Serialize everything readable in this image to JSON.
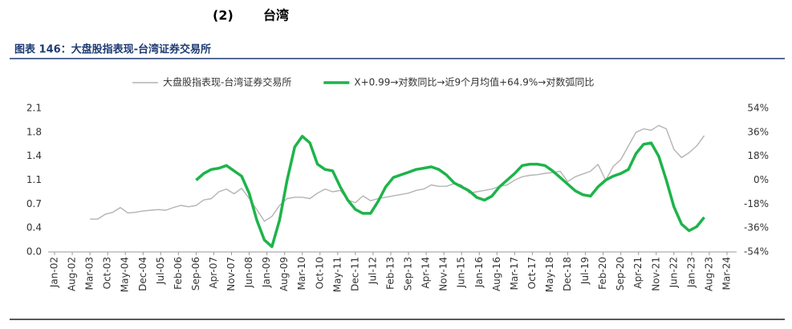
{
  "header": {
    "number": "(2)",
    "title": "台湾"
  },
  "caption": "图表 146：大盘股指表现-台湾证券交易所",
  "chart_data": {
    "type": "line",
    "x": [
      "Mar-03",
      "Jun-03",
      "Sep-03",
      "Dec-03",
      "Mar-04",
      "Jun-04",
      "Sep-04",
      "Dec-04",
      "Mar-05",
      "Jun-05",
      "Sep-05",
      "Dec-05",
      "Mar-06",
      "Jun-06",
      "Sep-06",
      "Dec-06",
      "Mar-07",
      "Jun-07",
      "Sep-07",
      "Dec-07",
      "Mar-08",
      "Jun-08",
      "Sep-08",
      "Dec-08",
      "Mar-09",
      "Jun-09",
      "Sep-09",
      "Dec-09",
      "Mar-10",
      "Jun-10",
      "Sep-10",
      "Dec-10",
      "Mar-11",
      "Jun-11",
      "Sep-11",
      "Dec-11",
      "Mar-12",
      "Jun-12",
      "Sep-12",
      "Dec-12",
      "Mar-13",
      "Jun-13",
      "Sep-13",
      "Dec-13",
      "Mar-14",
      "Jun-14",
      "Sep-14",
      "Dec-14",
      "Mar-15",
      "Jun-15",
      "Sep-15",
      "Dec-15",
      "Mar-16",
      "Jun-16",
      "Sep-16",
      "Dec-16",
      "Mar-17",
      "Jun-17",
      "Sep-17",
      "Dec-17",
      "Mar-18",
      "Jun-18",
      "Sep-18",
      "Dec-18",
      "Mar-19",
      "Jun-19",
      "Sep-19",
      "Dec-19",
      "Mar-20",
      "Jun-20",
      "Sep-20",
      "Dec-20",
      "Mar-21",
      "Jun-21",
      "Sep-21",
      "Dec-21",
      "Mar-22",
      "Jun-22",
      "Sep-22",
      "Dec-22",
      "Mar-23",
      "Jun-23"
    ],
    "series": [
      {
        "name": "大盘股指表现-台湾证券交易所",
        "color": "#b4b4b4",
        "axis": "y",
        "values": [
          0.48,
          0.48,
          0.55,
          0.58,
          0.65,
          0.57,
          0.58,
          0.6,
          0.61,
          0.62,
          0.61,
          0.65,
          0.68,
          0.66,
          0.68,
          0.76,
          0.78,
          0.88,
          0.92,
          0.85,
          0.93,
          0.78,
          0.62,
          0.45,
          0.52,
          0.68,
          0.78,
          0.8,
          0.8,
          0.78,
          0.86,
          0.92,
          0.88,
          0.9,
          0.76,
          0.72,
          0.82,
          0.75,
          0.78,
          0.8,
          0.82,
          0.84,
          0.86,
          0.9,
          0.92,
          0.98,
          0.96,
          0.96,
          1.0,
          0.98,
          0.86,
          0.88,
          0.9,
          0.92,
          0.96,
          0.98,
          1.05,
          1.1,
          1.12,
          1.13,
          1.15,
          1.16,
          1.18,
          1.03,
          1.1,
          1.14,
          1.18,
          1.28,
          1.05,
          1.25,
          1.35,
          1.55,
          1.75,
          1.8,
          1.78,
          1.85,
          1.8,
          1.5,
          1.38,
          1.45,
          1.55,
          1.7
        ]
      },
      {
        "name": "X+0.99→对数同比→近9个月均值+64.9%→对数弧同比",
        "color": "#1db44a",
        "axis": "y2",
        "values": [
          null,
          null,
          null,
          null,
          null,
          null,
          null,
          null,
          null,
          null,
          null,
          null,
          null,
          null,
          0,
          5,
          8,
          9,
          11,
          7,
          3,
          -10,
          -30,
          -45,
          -50,
          -30,
          0,
          25,
          33,
          28,
          12,
          8,
          7,
          -5,
          -15,
          -22,
          -25,
          -25,
          -16,
          -5,
          2,
          4,
          6,
          8,
          9,
          10,
          8,
          4,
          -2,
          -5,
          -8,
          -13,
          -15,
          -12,
          -5,
          0,
          5,
          11,
          12,
          12,
          11,
          7,
          2,
          -3,
          -8,
          -11,
          -12,
          -5,
          0,
          3,
          5,
          8,
          20,
          27,
          28,
          18,
          0,
          -20,
          -33,
          -38,
          -35,
          -28
        ]
      }
    ],
    "ylim": [
      0,
      2.1
    ],
    "yticks": [
      {
        "value": 0,
        "label": "0.0"
      },
      {
        "value": 0.35,
        "label": "0.4"
      },
      {
        "value": 0.7,
        "label": "0.7"
      },
      {
        "value": 1.05,
        "label": "1.1"
      },
      {
        "value": 1.4,
        "label": "1.4"
      },
      {
        "value": 1.75,
        "label": "1.8"
      },
      {
        "value": 2.1,
        "label": "2.1"
      }
    ],
    "y2lim": [
      -54,
      54
    ],
    "y2ticks": [
      {
        "value": -54,
        "label": "-54%"
      },
      {
        "value": -36,
        "label": "-36%"
      },
      {
        "value": -18,
        "label": "-18%"
      },
      {
        "value": 0,
        "label": "0%"
      },
      {
        "value": 18,
        "label": "18%"
      },
      {
        "value": 36,
        "label": "36%"
      },
      {
        "value": 54,
        "label": "54%"
      }
    ],
    "xticks": [
      "Jan-02",
      "Aug-02",
      "Mar-03",
      "Oct-03",
      "May-04",
      "Dec-04",
      "Jul-05",
      "Feb-06",
      "Sep-06",
      "Apr-07",
      "Nov-07",
      "Jun-08",
      "Jan-09",
      "Aug-09",
      "Mar-10",
      "Oct-10",
      "May-11",
      "Dec-11",
      "Jul-12",
      "Feb-13",
      "Sep-13",
      "Apr-14",
      "Nov-14",
      "Jun-15",
      "Jan-16",
      "Aug-16",
      "Mar-17",
      "Oct-17",
      "May-18",
      "Dec-18",
      "Jul-19",
      "Feb-20",
      "Sep-20",
      "Apr-21",
      "Nov-21",
      "Jun-22",
      "Jan-23",
      "Aug-23",
      "Mar-24"
    ],
    "grid": false,
    "legend": "top"
  }
}
